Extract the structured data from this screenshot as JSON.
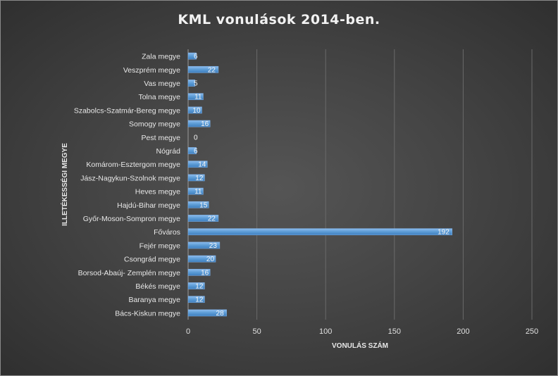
{
  "chart_data": {
    "type": "bar",
    "orientation": "horizontal",
    "title": "KML vonulások 2014-ben.",
    "xlabel": "VONULÁS SZÁM",
    "ylabel": "ILLETÉKESSÉGI MEGYE",
    "xlim": [
      0,
      250
    ],
    "xticks": [
      0,
      50,
      100,
      150,
      200,
      250
    ],
    "grid": true,
    "legend": "none",
    "bar_color": "#5b9bd5",
    "categories": [
      "Zala megye",
      "Veszprém megye",
      "Vas megye",
      "Tolna megye",
      "Szabolcs-Szatmár-Bereg megye",
      "Somogy megye",
      "Pest megye",
      "Nógrád",
      "Komárom-Esztergom megye",
      "Jász-Nagykun-Szolnok megye",
      "Heves megye",
      "Hajdú-Bihar megye",
      "Győr-Moson-Sompron megye",
      "Főváros",
      "Fejér megye",
      "Csongrád megye",
      "Borsod-Abaúj- Zemplén megye",
      "Békés megye",
      "Baranya megye",
      "Bács-Kiskun megye"
    ],
    "values": [
      6,
      22,
      5,
      11,
      10,
      16,
      0,
      6,
      14,
      12,
      11,
      15,
      22,
      192,
      23,
      20,
      16,
      12,
      12,
      28
    ]
  }
}
